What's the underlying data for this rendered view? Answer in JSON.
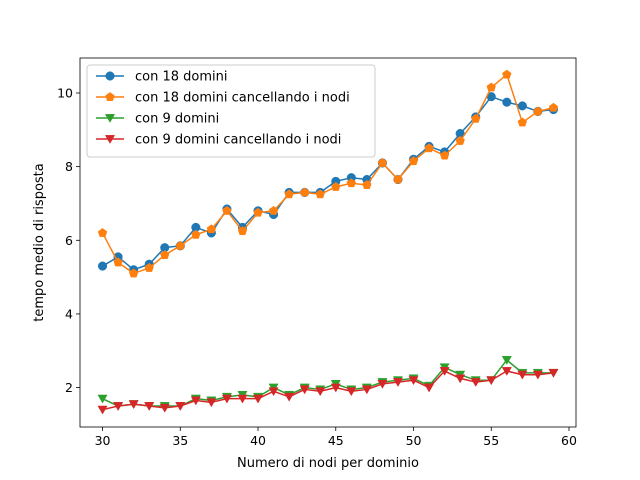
{
  "chart_data": {
    "type": "line",
    "title": "",
    "xlabel": "Numero di nodi per dominio",
    "ylabel": "tempo medio di risposta",
    "xlim": [
      28.55,
      60.45
    ],
    "ylim": [
      0.93,
      10.95
    ],
    "xticks": [
      30,
      35,
      40,
      45,
      50,
      55,
      60
    ],
    "yticks": [
      2,
      4,
      6,
      8,
      10
    ],
    "grid": false,
    "legend_position": "upper left",
    "x": [
      30,
      31,
      32,
      33,
      34,
      35,
      36,
      37,
      38,
      39,
      40,
      41,
      42,
      43,
      44,
      45,
      46,
      47,
      48,
      49,
      50,
      51,
      52,
      53,
      54,
      55,
      56,
      57,
      58,
      59
    ],
    "series": [
      {
        "name": "con 18 domini",
        "color": "#1f77b4",
        "marker": "circle",
        "values": [
          5.3,
          5.55,
          5.2,
          5.35,
          5.8,
          5.85,
          6.35,
          6.2,
          6.85,
          6.35,
          6.8,
          6.7,
          7.3,
          7.3,
          7.3,
          7.6,
          7.7,
          7.65,
          8.1,
          7.65,
          8.2,
          8.55,
          8.4,
          8.9,
          9.35,
          9.9,
          9.75,
          9.65,
          9.5,
          9.55
        ]
      },
      {
        "name": "con 18 domini cancellando i nodi",
        "color": "#ff7f0e",
        "marker": "pentagon",
        "values": [
          6.2,
          5.4,
          5.1,
          5.25,
          5.6,
          5.85,
          6.15,
          6.3,
          6.8,
          6.25,
          6.75,
          6.8,
          7.25,
          7.3,
          7.25,
          7.45,
          7.55,
          7.5,
          8.1,
          7.65,
          8.15,
          8.5,
          8.3,
          8.7,
          9.3,
          10.15,
          10.5,
          9.2,
          9.5,
          9.6
        ]
      },
      {
        "name": "con 9 domini",
        "color": "#2ca02c",
        "marker": "triangle-down",
        "values": [
          1.7,
          1.5,
          1.55,
          1.5,
          1.5,
          1.5,
          1.7,
          1.65,
          1.75,
          1.8,
          1.75,
          2.0,
          1.8,
          2.0,
          1.95,
          2.1,
          1.95,
          2.0,
          2.15,
          2.2,
          2.25,
          2.05,
          2.55,
          2.35,
          2.2,
          2.2,
          2.75,
          2.4,
          2.4,
          2.4
        ]
      },
      {
        "name": "con 9 domini cancellando i nodi",
        "color": "#d62728",
        "marker": "triangle-down",
        "values": [
          1.4,
          1.5,
          1.55,
          1.5,
          1.45,
          1.5,
          1.65,
          1.6,
          1.7,
          1.7,
          1.7,
          1.9,
          1.75,
          1.95,
          1.9,
          2.0,
          1.9,
          1.95,
          2.1,
          2.15,
          2.2,
          2.0,
          2.45,
          2.25,
          2.15,
          2.2,
          2.45,
          2.35,
          2.35,
          2.4
        ]
      }
    ]
  }
}
